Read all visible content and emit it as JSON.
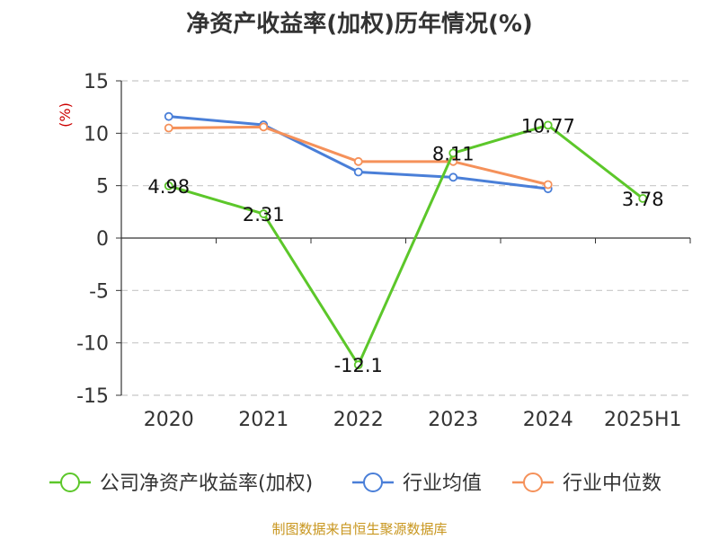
{
  "chart_data": {
    "type": "line",
    "title": "净资产收益率(加权)历年情况(%)",
    "ylabel": "(%)",
    "categories": [
      "2020",
      "2021",
      "2022",
      "2023",
      "2024",
      "2025H1"
    ],
    "ylim": [
      -15,
      15
    ],
    "yticks": [
      15,
      10,
      5,
      0,
      -5,
      -10,
      -15
    ],
    "grid": true,
    "legend_position": "bottom",
    "series": [
      {
        "name": "公司净资产收益率(加权)",
        "color": "#5cc72a",
        "values": [
          4.98,
          2.31,
          -12.1,
          8.11,
          10.77,
          3.78
        ],
        "labels": [
          "4.98",
          "2.31",
          "-12.1",
          "8.11",
          "10.77",
          "3.78"
        ]
      },
      {
        "name": "行业均值",
        "color": "#4a7fd8",
        "values": [
          11.6,
          10.8,
          6.3,
          5.8,
          4.7,
          null
        ]
      },
      {
        "name": "行业中位数",
        "color": "#f5915a",
        "values": [
          10.5,
          10.6,
          7.3,
          7.3,
          5.1,
          null
        ]
      }
    ]
  },
  "source": "制图数据来自恒生聚源数据库"
}
